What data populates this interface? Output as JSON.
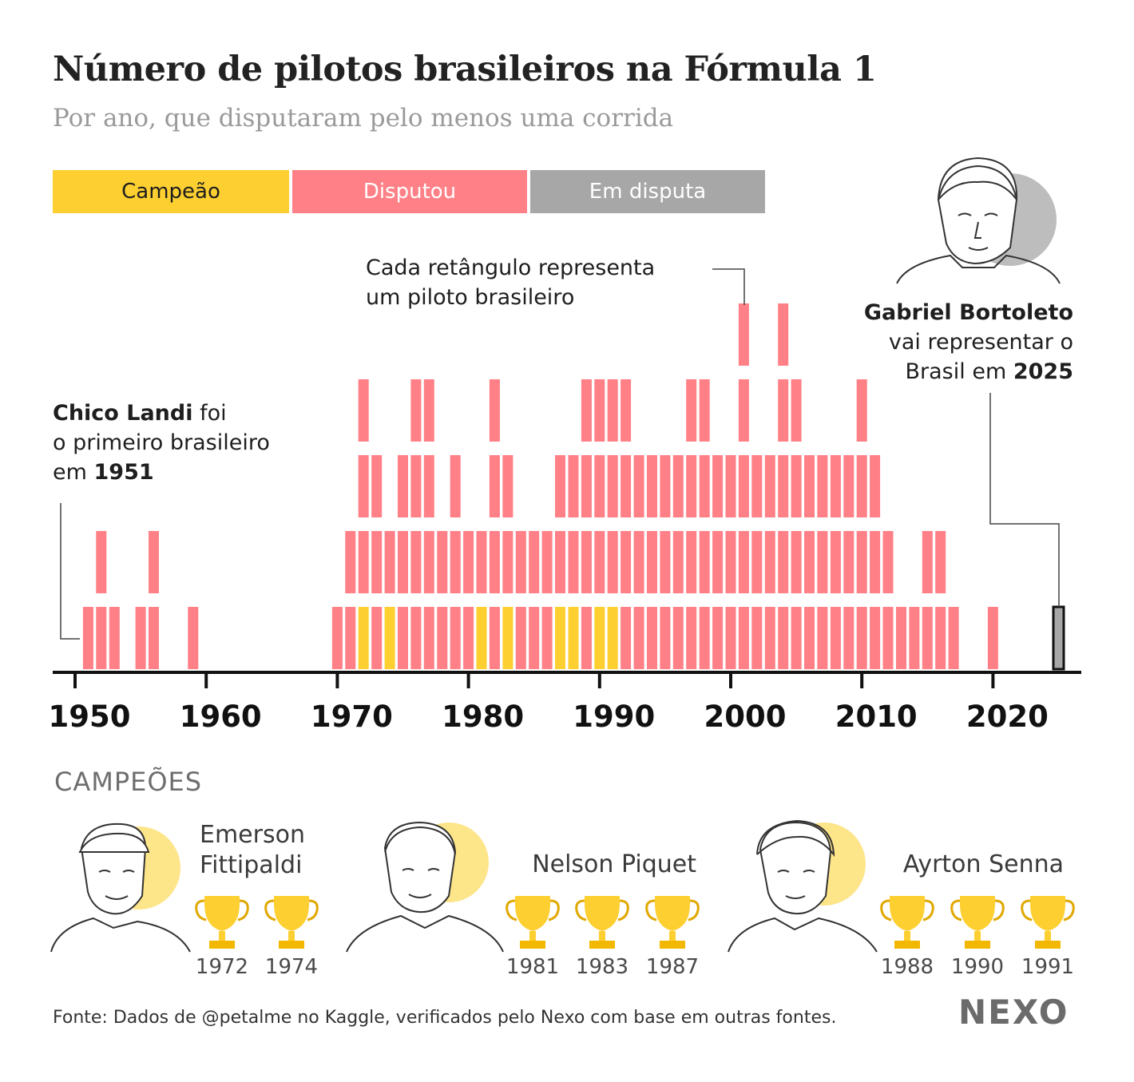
{
  "title": "Número de pilotos brasileiros na Fórmula 1",
  "subtitle": "Por ano, que disputaram pelo menos uma corrida",
  "legend": {
    "champion": "Campeão",
    "raced": "Disputou",
    "pending": "Em disputa"
  },
  "colors": {
    "champion": "#fdcf31",
    "raced": "#ff8087",
    "pending": "#a7a7a7",
    "axis": "#111111",
    "glow": "#fde58a"
  },
  "annotations": {
    "rect_note": {
      "line1": "Cada retângulo representa",
      "line2": "um piloto brasileiro"
    },
    "landi": {
      "name": "Chico Landi",
      "l1_rest": " foi",
      "l2": "o primeiro brasileiro",
      "l3_pre": "em ",
      "l3_year": "1951"
    },
    "bortoleto": {
      "name": "Gabriel Bortoleto",
      "l2": "vai representar o",
      "l3_pre": "Brasil em ",
      "l3_year": "2025"
    }
  },
  "chart_data": {
    "type": "bar",
    "title": "Número de pilotos brasileiros na Fórmula 1",
    "subtitle": "Por ano, que disputaram pelo menos uma corrida",
    "x_ticks": [
      1950,
      1960,
      1970,
      1980,
      1990,
      2000,
      2010,
      2020
    ],
    "xlim": [
      1948,
      2027
    ],
    "ylim": [
      0,
      5
    ],
    "grid": false,
    "legend_position": "top",
    "years": [
      1951,
      1952,
      1953,
      1955,
      1956,
      1959,
      1970,
      1971,
      1972,
      1973,
      1974,
      1975,
      1976,
      1977,
      1978,
      1979,
      1980,
      1981,
      1982,
      1983,
      1984,
      1985,
      1986,
      1987,
      1988,
      1989,
      1990,
      1991,
      1992,
      1993,
      1994,
      1995,
      1996,
      1997,
      1998,
      1999,
      2000,
      2001,
      2002,
      2003,
      2004,
      2005,
      2006,
      2007,
      2008,
      2009,
      2010,
      2011,
      2012,
      2013,
      2014,
      2015,
      2016,
      2017,
      2020,
      2025
    ],
    "counts": [
      1,
      2,
      1,
      1,
      2,
      1,
      1,
      2,
      4,
      3,
      2,
      3,
      4,
      4,
      2,
      3,
      2,
      2,
      4,
      3,
      2,
      2,
      2,
      3,
      3,
      4,
      4,
      4,
      4,
      3,
      3,
      3,
      3,
      4,
      4,
      3,
      3,
      5,
      3,
      3,
      5,
      4,
      3,
      3,
      3,
      3,
      4,
      3,
      2,
      1,
      1,
      2,
      2,
      1,
      1,
      1
    ],
    "champion_years": [
      1972,
      1974,
      1981,
      1983,
      1987,
      1988,
      1990,
      1991
    ],
    "pending_years": [
      2025
    ],
    "series": [
      {
        "name": "Campeão",
        "years": [
          1972,
          1974,
          1981,
          1983,
          1987,
          1988,
          1990,
          1991
        ]
      },
      {
        "name": "Disputou"
      },
      {
        "name": "Em disputa",
        "years": [
          2025
        ]
      }
    ]
  },
  "champions": {
    "heading": "CAMPEÕES",
    "list": [
      {
        "name_line1": "Emerson",
        "name_line2": "Fittipaldi",
        "years": [
          "1972",
          "1974"
        ]
      },
      {
        "name_line1": "Nelson Piquet",
        "name_line2": "",
        "years": [
          "1981",
          "1983",
          "1987"
        ]
      },
      {
        "name_line1": "Ayrton Senna",
        "name_line2": "",
        "years": [
          "1988",
          "1990",
          "1991"
        ]
      }
    ]
  },
  "source": "Fonte: Dados de @petalme no Kaggle, verificados pelo Nexo com base em outras fontes.",
  "logo": "NEXO"
}
